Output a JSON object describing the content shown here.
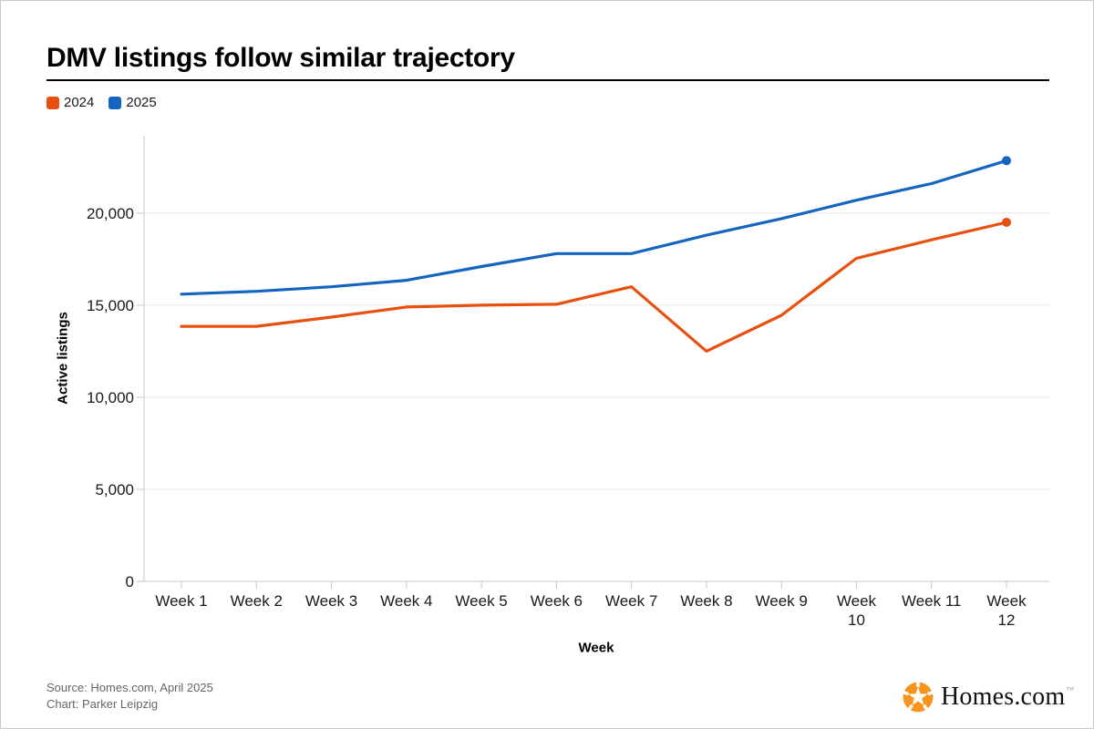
{
  "header": {
    "title": "DMV listings follow similar trajectory"
  },
  "legend": [
    {
      "label": "2024",
      "color": "#E8500F"
    },
    {
      "label": "2025",
      "color": "#1565C0"
    }
  ],
  "chart_data": {
    "type": "line",
    "title": "DMV listings follow similar trajectory",
    "xlabel": "Week",
    "ylabel": "Active listings",
    "categories": [
      "Week 1",
      "Week 2",
      "Week 3",
      "Week 4",
      "Week 5",
      "Week 6",
      "Week 7",
      "Week 8",
      "Week 9",
      "Week 10",
      "Week 11",
      "Week 12"
    ],
    "x_tick_lines": [
      [
        "Week 1"
      ],
      [
        "Week 2"
      ],
      [
        "Week 3"
      ],
      [
        "Week 4"
      ],
      [
        "Week 5"
      ],
      [
        "Week 6"
      ],
      [
        "Week 7"
      ],
      [
        "Week 8"
      ],
      [
        "Week 9"
      ],
      [
        "Week",
        "10"
      ],
      [
        "Week 11"
      ],
      [
        "Week",
        "12"
      ]
    ],
    "series": [
      {
        "name": "2024",
        "color": "#E8500F",
        "endpoint_dot": true,
        "values": [
          13850,
          13850,
          14350,
          14900,
          15000,
          15050,
          16000,
          12500,
          14450,
          17550,
          18550,
          19500
        ]
      },
      {
        "name": "2025",
        "color": "#1565C0",
        "endpoint_dot": true,
        "values": [
          15600,
          15750,
          16000,
          16350,
          17100,
          17800,
          17800,
          18800,
          19700,
          20700,
          21600,
          22850
        ]
      }
    ],
    "y_ticks": [
      0,
      5000,
      10000,
      15000,
      20000
    ],
    "y_tick_labels": [
      "0",
      "5,000",
      "10,000",
      "15,000",
      "20,000"
    ],
    "ylim": [
      0,
      24200
    ],
    "grid": true,
    "legend_position": "top-left"
  },
  "footer": {
    "source": "Source: Homes.com, April 2025",
    "credit": "Chart: Parker Leipzig",
    "logo_text": "Homes.com",
    "logo_tm": "™",
    "logo_color": "#F7941D"
  }
}
